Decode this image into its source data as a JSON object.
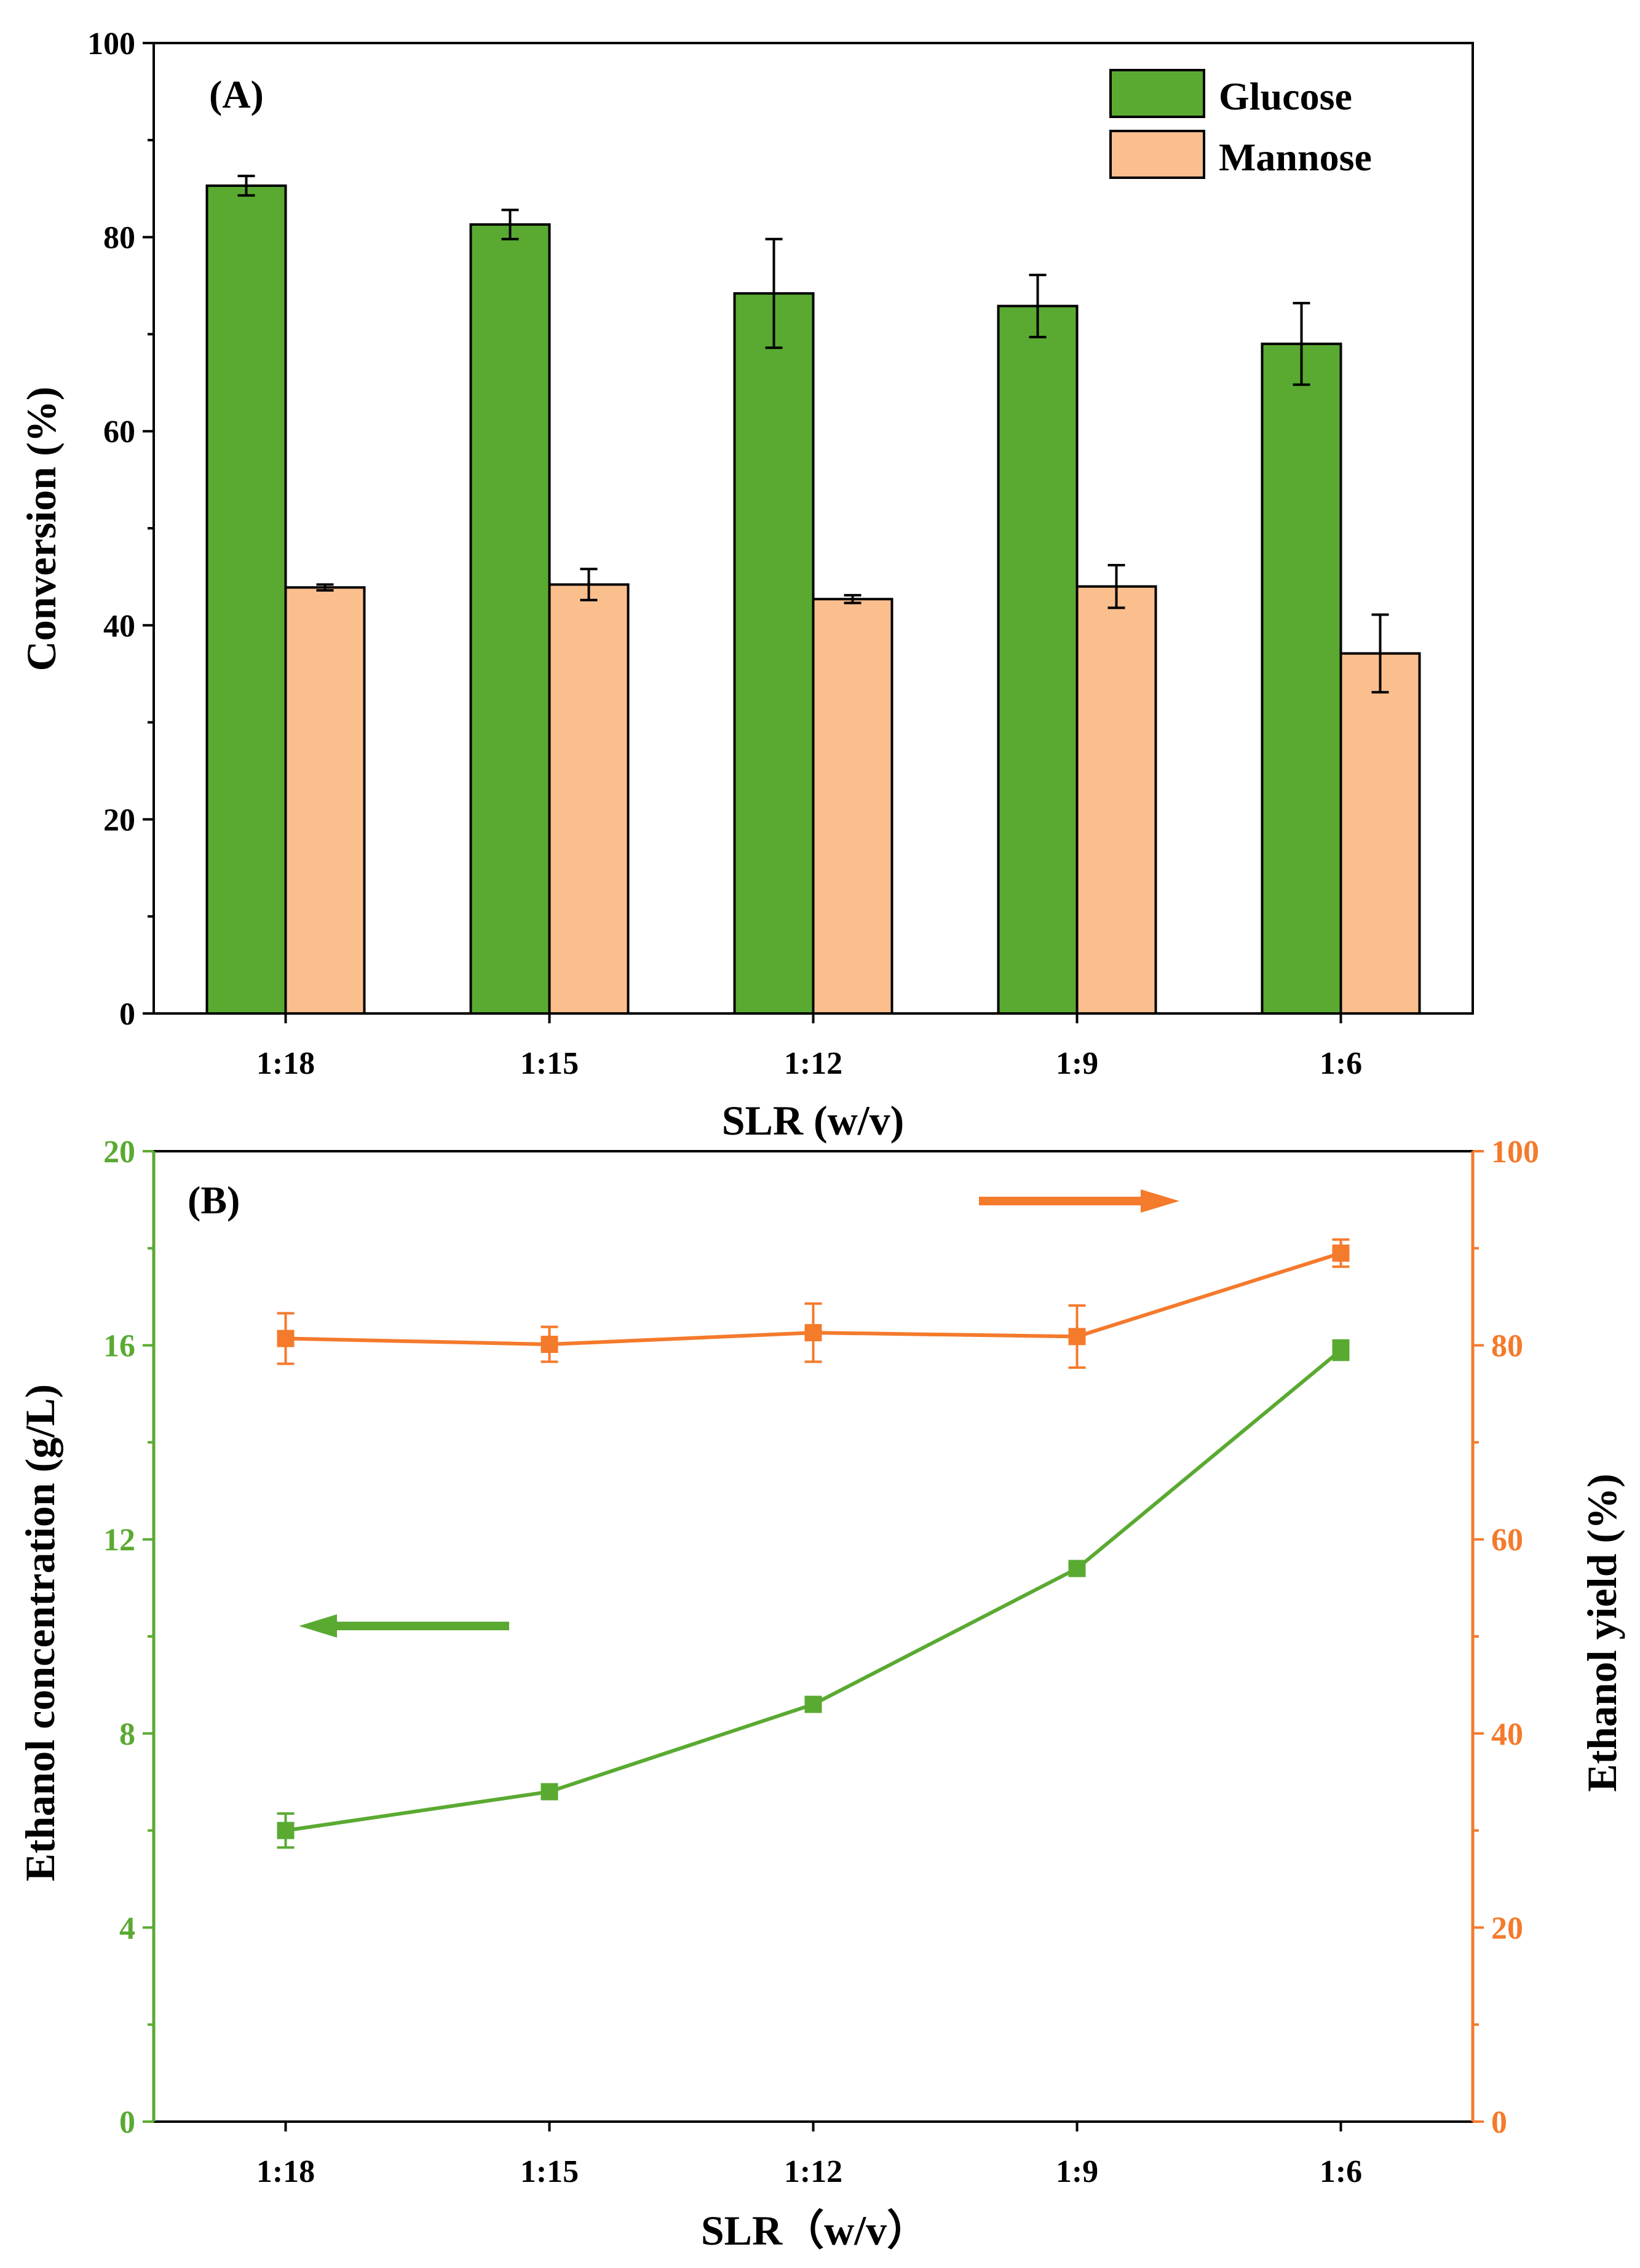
{
  "colors": {
    "glucose": "#5aaa32",
    "glucose_dark": "#3d8a1e",
    "mannose": "#fbbf8e",
    "concentration": "#5aaa32",
    "yield": "#f47a2c",
    "axis": "#000000"
  },
  "chart_data": [
    {
      "type": "bar",
      "panel_label": "(A)",
      "title": "",
      "xlabel": "SLR (w/v)",
      "ylabel": "Conversion (%)",
      "ylim": [
        0,
        100
      ],
      "yticks": [
        "0",
        "20",
        "40",
        "60",
        "80",
        "100"
      ],
      "categories": [
        "1:18",
        "1:15",
        "1:12",
        "1:9",
        "1:6"
      ],
      "legend_position": "top-right",
      "series": [
        {
          "name": "Glucose",
          "values": [
            85.3,
            81.3,
            74.2,
            72.9,
            69.0
          ],
          "errors": [
            1.0,
            1.5,
            5.6,
            3.2,
            4.2
          ]
        },
        {
          "name": "Mannose",
          "values": [
            43.9,
            44.2,
            42.7,
            44.0,
            37.1
          ],
          "errors": [
            0.3,
            1.6,
            0.4,
            2.2,
            4.0
          ]
        }
      ]
    },
    {
      "type": "line",
      "panel_label": "(B)",
      "title": "",
      "xlabel": "SLR（w/v）",
      "categories": [
        "1:18",
        "1:15",
        "1:12",
        "1:9",
        "1:6"
      ],
      "y_left": {
        "label": "Ethanol concentration (g/L)",
        "lim": [
          0,
          20
        ],
        "ticks": [
          "0",
          "4",
          "8",
          "12",
          "16",
          "20"
        ]
      },
      "y_right": {
        "label": "Ethanol yield (%)",
        "lim": [
          0,
          100
        ],
        "ticks": [
          "0",
          "20",
          "40",
          "60",
          "80",
          "100"
        ]
      },
      "series": [
        {
          "name": "Ethanol concentration",
          "axis": "left",
          "values": [
            6.0,
            6.8,
            8.6,
            11.4,
            15.9
          ],
          "errors": [
            0.35,
            0.1,
            0.1,
            0.15,
            0.2
          ]
        },
        {
          "name": "Ethanol yield",
          "axis": "right",
          "values": [
            80.7,
            80.1,
            81.3,
            80.9,
            89.5
          ],
          "errors": [
            2.6,
            1.8,
            3.0,
            3.2,
            1.4
          ]
        }
      ],
      "annotations": [
        {
          "type": "arrow",
          "direction": "right",
          "meaning": "ethanol yield uses right axis"
        },
        {
          "type": "arrow",
          "direction": "left",
          "meaning": "ethanol concentration uses left axis"
        }
      ]
    }
  ]
}
